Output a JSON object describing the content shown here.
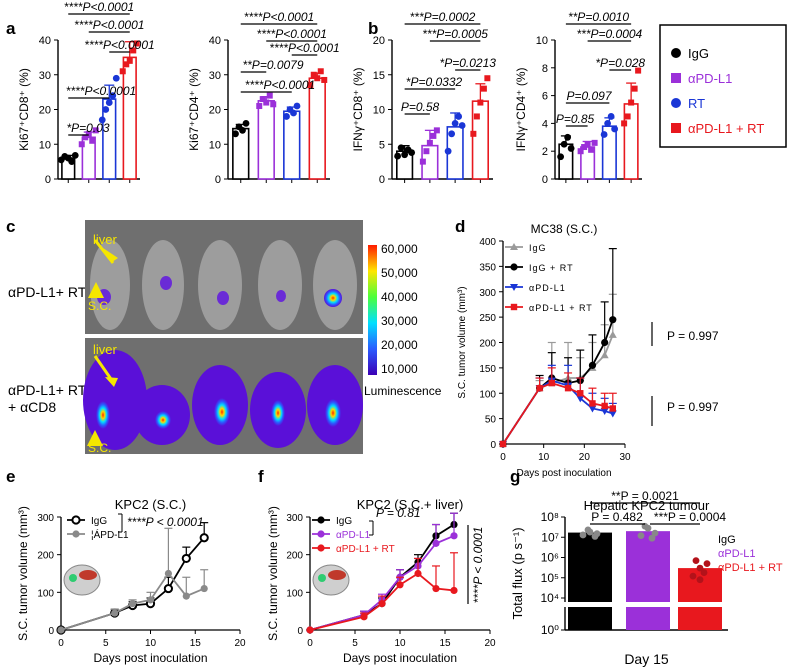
{
  "panels": {
    "a": "a",
    "b": "b",
    "c": "c",
    "d": "d",
    "e": "e",
    "f": "f",
    "g": "g"
  },
  "colors": {
    "igg": "#000000",
    "pdl1": "#9b30d9",
    "rt": "#1a36d6",
    "combo": "#e8181e",
    "grey": "#9a9a9a"
  },
  "legend_abc": {
    "items": [
      "IgG",
      "αPD-L1",
      "RT",
      "αPD-L1 + RT"
    ]
  },
  "chart_data": [
    {
      "id": "a1",
      "type": "bar",
      "ylabel": "Ki67⁺CD8⁺ (%)",
      "ylim": [
        0,
        40
      ],
      "yticks": [
        "0",
        "10",
        "20",
        "30",
        "40"
      ],
      "categories": [
        "IgG",
        "αPD-L1",
        "RT",
        "αPD-L1 + RT"
      ],
      "values": [
        6,
        12,
        23,
        35
      ],
      "errors": [
        0.8,
        1.5,
        4,
        4.5
      ],
      "points": [
        [
          5.5,
          6.5,
          6,
          5,
          6.8
        ],
        [
          10,
          12,
          13,
          11,
          14
        ],
        [
          17,
          20,
          22,
          24,
          29
        ],
        [
          31,
          33,
          34,
          37,
          39
        ]
      ],
      "annotations": [
        "****P<0.0001",
        "****P<0.0001",
        "****P<0.0001",
        "****P<0.0001",
        "*P=0.03"
      ]
    },
    {
      "id": "a2",
      "type": "bar",
      "ylabel": "Ki67⁺CD4⁺ (%)",
      "ylim": [
        0,
        40
      ],
      "yticks": [
        "0",
        "10",
        "20",
        "30",
        "40"
      ],
      "categories": [
        "IgG",
        "αPD-L1",
        "RT",
        "αPD-L1 + RT"
      ],
      "values": [
        14.5,
        22.5,
        19.5,
        29
      ],
      "errors": [
        1.2,
        1.2,
        1.2,
        1.5
      ],
      "points": [
        [
          13,
          15,
          14,
          16
        ],
        [
          21,
          23,
          22,
          24,
          21.5
        ],
        [
          18,
          20,
          19,
          21
        ],
        [
          27,
          30,
          29,
          31,
          28.5
        ]
      ],
      "annotations": [
        "****P<0.0001",
        "****P<0.0001",
        "****P<0.0001",
        "**P=0.0079",
        "****P<0.0001"
      ]
    },
    {
      "id": "b1",
      "type": "bar",
      "ylabel": "IFNγ⁺CD8⁺ (%)",
      "ylim": [
        0,
        20
      ],
      "yticks": [
        "0",
        "5",
        "10",
        "15",
        "20"
      ],
      "categories": [
        "IgG",
        "αPD-L1",
        "RT",
        "αPD-L1 + RT"
      ],
      "values": [
        4,
        4.8,
        7.5,
        11.2
      ],
      "errors": [
        0.8,
        2.2,
        2,
        2.5
      ],
      "points": [
        [
          3.3,
          4.5,
          3.5,
          4.2,
          3.8
        ],
        [
          2.5,
          4,
          5.2,
          6.2,
          7
        ],
        [
          4,
          6.5,
          8,
          9,
          7.7
        ],
        [
          6.5,
          9,
          11,
          13,
          14.5
        ]
      ],
      "annotations": [
        "***P=0.0002",
        "***P=0.0005",
        "*P=0.0213",
        "*P=0.0332",
        "P=0.58"
      ]
    },
    {
      "id": "b2",
      "type": "bar",
      "ylabel": "IFNγ⁺CD4⁺ (%)",
      "ylim": [
        0,
        10
      ],
      "yticks": [
        "0",
        "2",
        "4",
        "6",
        "8",
        "10"
      ],
      "categories": [
        "IgG",
        "αPD-L1",
        "RT",
        "αPD-L1 + RT"
      ],
      "values": [
        2.5,
        2.3,
        3.8,
        5.4
      ],
      "errors": [
        0.6,
        0.4,
        0.6,
        1.5
      ],
      "points": [
        [
          1.6,
          2.5,
          3,
          2.2
        ],
        [
          2,
          2.3,
          2.5,
          2.1,
          2.6
        ],
        [
          3.2,
          4,
          4.5,
          3.6
        ],
        [
          4,
          4.5,
          5.5,
          6.5,
          7.8
        ]
      ],
      "annotations": [
        "**P=0.0010",
        "***P=0.0004",
        "*P=0.028",
        "P=0.097",
        "P=0.85"
      ]
    },
    {
      "id": "d",
      "type": "line",
      "title": "MC38 (S.C.)",
      "xlabel": "Days post inoculation",
      "ylabel": "S.C. tumor volume (mm³)",
      "xlim": [
        0,
        30
      ],
      "ylim": [
        0,
        400
      ],
      "xticks": [
        "0",
        "10",
        "20",
        "30"
      ],
      "yticks": [
        "0",
        "50",
        "100",
        "150",
        "200",
        "250",
        "300",
        "350",
        "400"
      ],
      "x": [
        0,
        9,
        12,
        16,
        19,
        22,
        25,
        27
      ],
      "series": [
        {
          "name": "IgG",
          "values": [
            0,
            110,
            120,
            130,
            130,
            150,
            175,
            215
          ],
          "errors": [
            0,
            15,
            80,
            70,
            40,
            50,
            60,
            80
          ]
        },
        {
          "name": "IgG + RT",
          "values": [
            0,
            110,
            130,
            120,
            125,
            155,
            200,
            245
          ],
          "errors": [
            0,
            25,
            50,
            50,
            60,
            60,
            80,
            140
          ]
        },
        {
          "name": "αPD-L1",
          "values": [
            0,
            110,
            125,
            115,
            90,
            70,
            65,
            60
          ],
          "errors": [
            0,
            20,
            30,
            40,
            40,
            30,
            25,
            20
          ]
        },
        {
          "name": "αPD-L1 + RT",
          "values": [
            0,
            110,
            120,
            110,
            100,
            80,
            75,
            70
          ],
          "errors": [
            0,
            20,
            30,
            30,
            30,
            30,
            25,
            30
          ]
        }
      ],
      "annotations": [
        "P = 0.997",
        "P = 0.997"
      ]
    },
    {
      "id": "e",
      "type": "line",
      "title": "KPC2 (S.C.)",
      "xlabel": "Days post inoculation",
      "ylabel": "S.C. tumor volume (mm³)",
      "xlim": [
        0,
        20
      ],
      "ylim": [
        0,
        300
      ],
      "xticks": [
        "0",
        "5",
        "10",
        "15",
        "20"
      ],
      "yticks": [
        "0",
        "100",
        "200",
        "300"
      ],
      "x": [
        0,
        6,
        8,
        10,
        12,
        14,
        16
      ],
      "series": [
        {
          "name": "IgG",
          "values": [
            0,
            45,
            65,
            70,
            110,
            190,
            245
          ],
          "errors": [
            0,
            10,
            10,
            15,
            30,
            30,
            40
          ]
        },
        {
          "name": "¦ÁPD-L1",
          "values": [
            0,
            45,
            70,
            80,
            150,
            90,
            110
          ],
          "errors": [
            0,
            10,
            10,
            20,
            120,
            50,
            50
          ]
        }
      ],
      "annotations": [
        "****P < 0.0001"
      ]
    },
    {
      "id": "f",
      "type": "line",
      "title": "KPC2 (S.C.+ liver)",
      "xlabel": "Days post inoculation",
      "ylabel": "S.C. tumor volume (mm³)",
      "xlim": [
        0,
        20
      ],
      "ylim": [
        0,
        300
      ],
      "xticks": [
        "0",
        "5",
        "10",
        "15",
        "20"
      ],
      "yticks": [
        "0",
        "100",
        "200",
        "300"
      ],
      "x": [
        0,
        6,
        8,
        10,
        12,
        14,
        16
      ],
      "series": [
        {
          "name": "IgG",
          "values": [
            0,
            40,
            70,
            140,
            180,
            250,
            280
          ],
          "errors": [
            0,
            10,
            15,
            20,
            20,
            30,
            30
          ]
        },
        {
          "name": "αPD-L1",
          "values": [
            0,
            40,
            80,
            140,
            170,
            230,
            250
          ],
          "errors": [
            0,
            10,
            15,
            20,
            20,
            50,
            60
          ]
        },
        {
          "name": "αPD-L1 + RT",
          "values": [
            0,
            35,
            70,
            120,
            150,
            110,
            105
          ],
          "errors": [
            0,
            10,
            20,
            20,
            40,
            60,
            100
          ]
        }
      ],
      "annotations": [
        "P = 0.81",
        "****P < 0.0001"
      ]
    },
    {
      "id": "g",
      "type": "bar",
      "title": "Hepatic KPC2 tumour",
      "xlabel": "Day 15",
      "ylabel": "Total flux (p s⁻¹)",
      "yscale": "log",
      "yticks": [
        "10⁰",
        "10⁴",
        "10⁵",
        "10⁶",
        "10⁷",
        "10⁸"
      ],
      "categories": [
        "IgG",
        "αPD-L1",
        "αPD-L1 + RT"
      ],
      "values": [
        17000000.0,
        20000000.0,
        300000.0
      ],
      "annotations": [
        "**P = 0.0021",
        "P = 0.482",
        "***P = 0.0004"
      ]
    }
  ],
  "panel_c": {
    "row1_label": "αPD-L1+ RT",
    "row2_label_1": "αPD-L1+ RT",
    "row2_label_2": "+ αCD8",
    "liver": "liver",
    "sc": "S.C.",
    "colorbar_ticks": [
      "60,000",
      "50,000",
      "40,000",
      "30,000",
      "20,000",
      "10,000"
    ],
    "colorbar_label": "Luminescence"
  }
}
